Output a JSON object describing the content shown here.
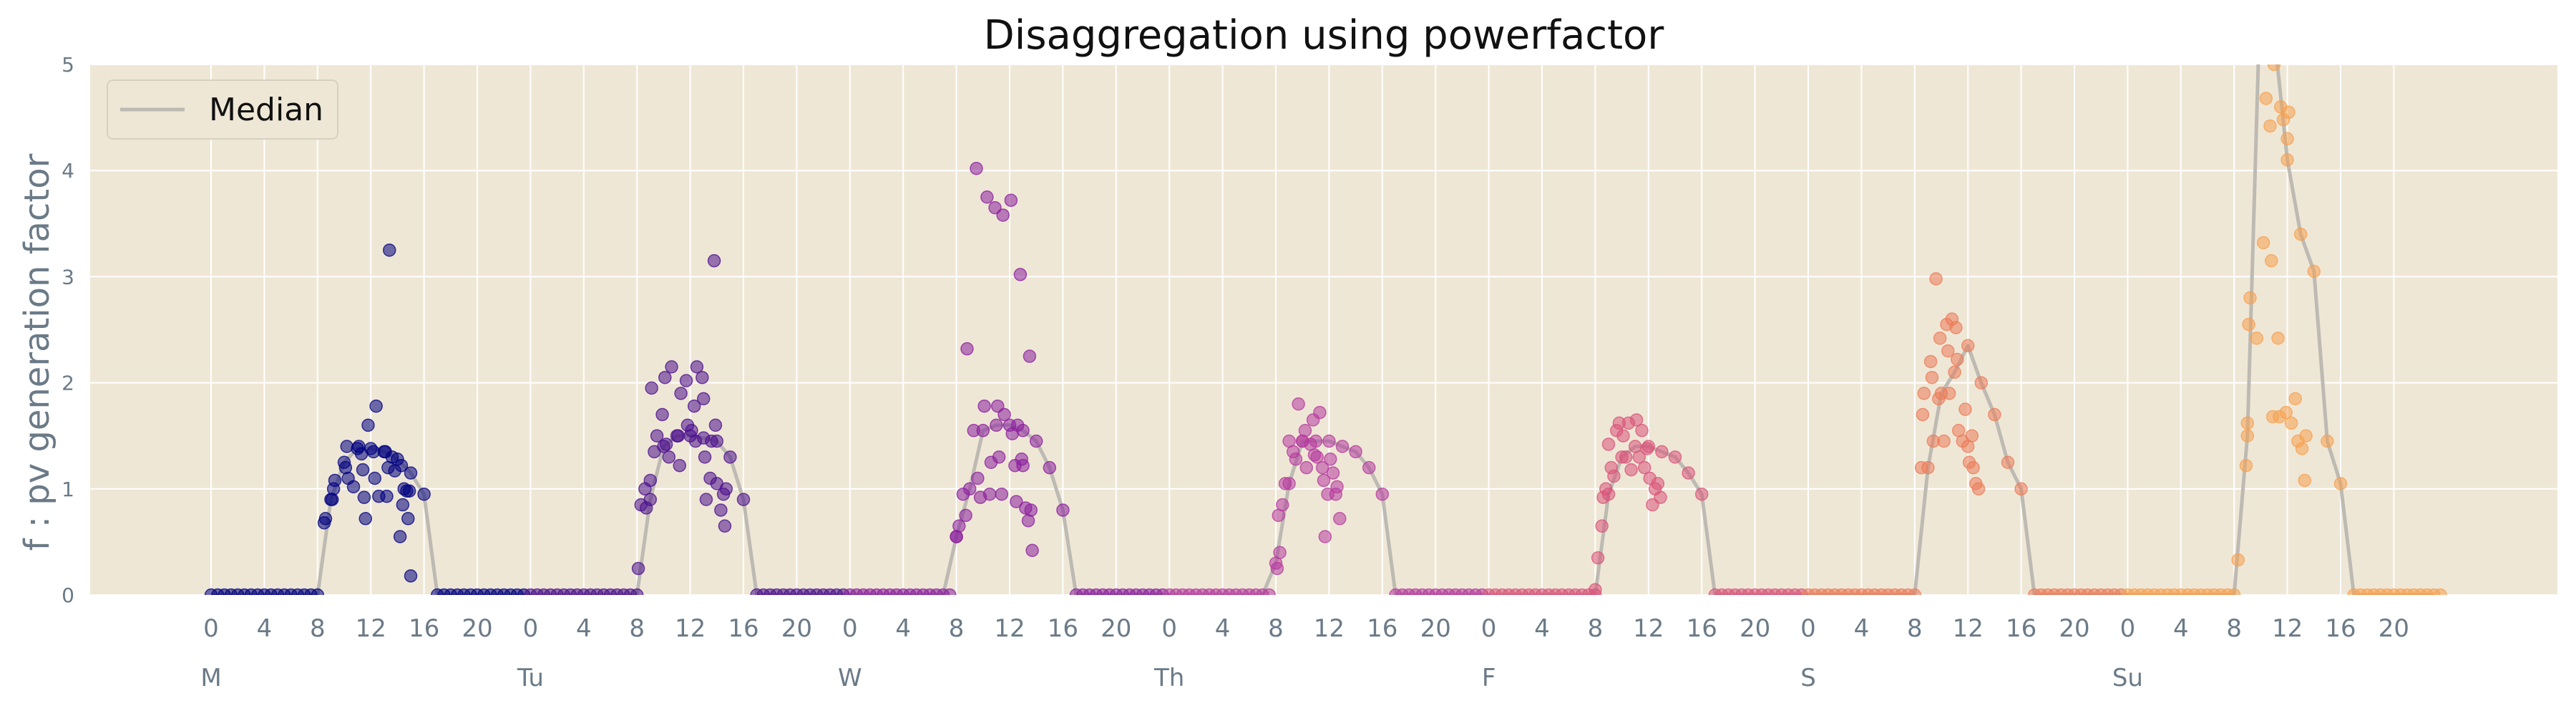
{
  "chart_data": {
    "type": "scatter",
    "title": "Disaggregation using powerfactor",
    "ylabel": "f : pv generation factor",
    "xlabel": "",
    "ylim": [
      0,
      5
    ],
    "yticks": [
      0,
      1,
      2,
      3,
      4,
      5
    ],
    "hour_tick_labels": [
      "0",
      "4",
      "8",
      "12",
      "16",
      "20"
    ],
    "day_labels": [
      "M",
      "Tu",
      "W",
      "Th",
      "F",
      "S",
      "Su"
    ],
    "grid": true,
    "legend": {
      "position": "top-left",
      "entries": [
        "Median"
      ]
    },
    "colors": {
      "background": "#efe7d6",
      "grid": "#ffffff",
      "median_line": "#bdbab3",
      "axis_text": "#6b7a87",
      "day_colors": [
        "#000080",
        "#4b0f8c",
        "#8b1f9e",
        "#b53a9e",
        "#d8547a",
        "#eb7b5a",
        "#f5a050"
      ]
    },
    "median_label": "Median",
    "days": [
      {
        "day": "M",
        "median": [
          0,
          0,
          0,
          0,
          0,
          0,
          0,
          0,
          0,
          0.9,
          1.25,
          1.38,
          1.38,
          1.35,
          1.28,
          1.15,
          0.95,
          0,
          0,
          0,
          0,
          0,
          0,
          0
        ],
        "extras": [
          [
            8.5,
            0.68
          ],
          [
            8.6,
            0.72
          ],
          [
            9.1,
            0.9
          ],
          [
            9.2,
            1.0
          ],
          [
            9.3,
            1.08
          ],
          [
            10.1,
            1.2
          ],
          [
            10.3,
            1.1
          ],
          [
            10.2,
            1.4
          ],
          [
            10.7,
            1.02
          ],
          [
            11.1,
            1.4
          ],
          [
            11.3,
            1.33
          ],
          [
            11.4,
            1.18
          ],
          [
            11.6,
            0.72
          ],
          [
            11.8,
            1.6
          ],
          [
            11.5,
            0.92
          ],
          [
            12.2,
            1.35
          ],
          [
            12.4,
            1.78
          ],
          [
            12.3,
            1.1
          ],
          [
            12.6,
            0.93
          ],
          [
            13.1,
            1.35
          ],
          [
            13.3,
            1.2
          ],
          [
            13.4,
            3.25
          ],
          [
            13.2,
            0.93
          ],
          [
            13.6,
            1.3
          ],
          [
            13.8,
            1.17
          ],
          [
            14.2,
            0.55
          ],
          [
            14.4,
            0.85
          ],
          [
            14.3,
            1.22
          ],
          [
            14.7,
            0.98
          ],
          [
            14.8,
            0.72
          ],
          [
            15.0,
            0.18
          ],
          [
            14.9,
            0.98
          ],
          [
            14.5,
            1.0
          ]
        ]
      },
      {
        "day": "Tu",
        "median": [
          0,
          0,
          0,
          0,
          0,
          0,
          0,
          0,
          0,
          0.9,
          1.4,
          1.5,
          1.5,
          1.48,
          1.45,
          1.3,
          0.9,
          0,
          0,
          0,
          0,
          0,
          0,
          0
        ],
        "extras": [
          [
            8.1,
            0.25
          ],
          [
            8.3,
            0.85
          ],
          [
            8.6,
            1.0
          ],
          [
            8.7,
            0.82
          ],
          [
            9.0,
            1.08
          ],
          [
            9.1,
            1.95
          ],
          [
            9.3,
            1.35
          ],
          [
            9.5,
            1.5
          ],
          [
            9.9,
            1.7
          ],
          [
            10.1,
            2.05
          ],
          [
            10.2,
            1.42
          ],
          [
            10.6,
            2.15
          ],
          [
            10.4,
            1.3
          ],
          [
            11.1,
            1.5
          ],
          [
            11.3,
            1.9
          ],
          [
            11.2,
            1.22
          ],
          [
            11.7,
            2.02
          ],
          [
            11.8,
            1.6
          ],
          [
            12.1,
            1.55
          ],
          [
            12.3,
            1.78
          ],
          [
            12.5,
            2.15
          ],
          [
            12.4,
            1.45
          ],
          [
            12.9,
            2.05
          ],
          [
            13.0,
            1.85
          ],
          [
            13.1,
            1.3
          ],
          [
            13.2,
            0.9
          ],
          [
            13.5,
            1.1
          ],
          [
            13.6,
            1.45
          ],
          [
            13.9,
            1.6
          ],
          [
            13.8,
            3.15
          ],
          [
            14.0,
            1.05
          ],
          [
            14.3,
            0.8
          ],
          [
            14.5,
            0.95
          ],
          [
            14.6,
            0.65
          ],
          [
            14.7,
            1.0
          ]
        ]
      },
      {
        "day": "W",
        "median": [
          0,
          0,
          0,
          0,
          0,
          0,
          0,
          0,
          0.55,
          1.0,
          1.55,
          1.6,
          1.6,
          1.55,
          1.45,
          1.2,
          0.8,
          0,
          0,
          0,
          0,
          0,
          0,
          0
        ],
        "extras": [
          [
            8.0,
            0.55
          ],
          [
            8.2,
            0.65
          ],
          [
            8.5,
            0.95
          ],
          [
            8.7,
            0.75
          ],
          [
            8.8,
            2.32
          ],
          [
            9.3,
            1.55
          ],
          [
            9.5,
            4.02
          ],
          [
            9.6,
            1.1
          ],
          [
            9.8,
            0.92
          ],
          [
            10.1,
            1.78
          ],
          [
            10.3,
            3.75
          ],
          [
            10.6,
            1.25
          ],
          [
            10.5,
            0.95
          ],
          [
            10.9,
            3.65
          ],
          [
            11.1,
            1.78
          ],
          [
            11.2,
            1.3
          ],
          [
            11.5,
            3.58
          ],
          [
            11.6,
            1.7
          ],
          [
            11.4,
            0.95
          ],
          [
            12.1,
            3.72
          ],
          [
            12.2,
            1.52
          ],
          [
            12.4,
            1.22
          ],
          [
            12.5,
            0.88
          ],
          [
            12.8,
            3.02
          ],
          [
            12.6,
            1.6
          ],
          [
            13.0,
            1.22
          ],
          [
            13.2,
            0.82
          ],
          [
            13.5,
            2.25
          ],
          [
            13.6,
            0.8
          ],
          [
            13.7,
            0.42
          ],
          [
            13.4,
            0.7
          ],
          [
            12.9,
            1.28
          ]
        ]
      },
      {
        "day": "Th",
        "median": [
          0,
          0,
          0,
          0,
          0,
          0,
          0,
          0,
          0.3,
          1.05,
          1.45,
          1.45,
          1.45,
          1.4,
          1.35,
          1.2,
          0.95,
          0,
          0,
          0,
          0,
          0,
          0,
          0
        ],
        "extras": [
          [
            8.1,
            0.25
          ],
          [
            8.3,
            0.4
          ],
          [
            8.2,
            0.75
          ],
          [
            8.5,
            0.85
          ],
          [
            8.7,
            1.05
          ],
          [
            9.0,
            1.45
          ],
          [
            9.3,
            1.35
          ],
          [
            9.5,
            1.28
          ],
          [
            9.7,
            1.8
          ],
          [
            10.0,
            1.45
          ],
          [
            10.2,
            1.55
          ],
          [
            10.3,
            1.2
          ],
          [
            10.6,
            1.42
          ],
          [
            10.8,
            1.65
          ],
          [
            10.9,
            1.32
          ],
          [
            11.1,
            1.3
          ],
          [
            11.3,
            1.72
          ],
          [
            11.5,
            1.2
          ],
          [
            11.6,
            1.08
          ],
          [
            11.7,
            0.55
          ],
          [
            11.9,
            0.95
          ],
          [
            12.1,
            1.28
          ],
          [
            12.3,
            1.15
          ],
          [
            12.6,
            1.02
          ],
          [
            12.8,
            0.72
          ],
          [
            12.5,
            0.95
          ]
        ]
      },
      {
        "day": "F",
        "median": [
          0,
          0,
          0,
          0,
          0,
          0,
          0,
          0,
          0.0,
          0.95,
          1.3,
          1.4,
          1.4,
          1.35,
          1.3,
          1.15,
          0.95,
          0,
          0,
          0,
          0,
          0,
          0,
          0
        ],
        "extras": [
          [
            8.0,
            0.05
          ],
          [
            8.2,
            0.35
          ],
          [
            8.5,
            0.65
          ],
          [
            8.6,
            0.92
          ],
          [
            8.8,
            1.0
          ],
          [
            9.0,
            1.42
          ],
          [
            9.2,
            1.2
          ],
          [
            9.4,
            1.12
          ],
          [
            9.6,
            1.55
          ],
          [
            9.8,
            1.62
          ],
          [
            10.1,
            1.5
          ],
          [
            10.3,
            1.3
          ],
          [
            10.5,
            1.62
          ],
          [
            10.7,
            1.18
          ],
          [
            11.1,
            1.65
          ],
          [
            11.3,
            1.3
          ],
          [
            11.5,
            1.55
          ],
          [
            11.7,
            1.2
          ],
          [
            11.9,
            1.38
          ],
          [
            12.1,
            1.1
          ],
          [
            12.3,
            0.85
          ],
          [
            12.5,
            1.0
          ],
          [
            12.7,
            1.05
          ],
          [
            12.9,
            0.92
          ]
        ]
      },
      {
        "day": "S",
        "median": [
          0,
          0,
          0,
          0,
          0,
          0,
          0,
          0,
          0.0,
          1.2,
          1.9,
          2.1,
          2.35,
          2.0,
          1.7,
          1.25,
          1.0,
          0,
          0,
          0,
          0,
          0,
          0,
          0
        ],
        "extras": [
          [
            8.5,
            1.2
          ],
          [
            8.6,
            1.7
          ],
          [
            8.7,
            1.9
          ],
          [
            9.2,
            2.2
          ],
          [
            9.3,
            2.05
          ],
          [
            9.4,
            1.45
          ],
          [
            9.6,
            2.98
          ],
          [
            9.8,
            1.85
          ],
          [
            9.9,
            2.42
          ],
          [
            10.2,
            1.45
          ],
          [
            10.4,
            2.55
          ],
          [
            10.5,
            2.3
          ],
          [
            10.6,
            1.9
          ],
          [
            10.8,
            2.6
          ],
          [
            11.1,
            2.52
          ],
          [
            11.3,
            1.55
          ],
          [
            11.2,
            2.22
          ],
          [
            11.6,
            1.45
          ],
          [
            11.8,
            1.75
          ],
          [
            12.1,
            1.25
          ],
          [
            12.3,
            1.5
          ],
          [
            12.4,
            1.2
          ],
          [
            12.6,
            1.05
          ],
          [
            12.8,
            1.0
          ],
          [
            12.0,
            1.4
          ]
        ]
      },
      {
        "day": "Su",
        "median": [
          0,
          0,
          0,
          0,
          0,
          0,
          0,
          0,
          0.0,
          1.5,
          5.8,
          5.3,
          4.1,
          3.4,
          3.05,
          1.45,
          1.05,
          0,
          0,
          0,
          0,
          0,
          0,
          0
        ],
        "extras": [
          [
            8.3,
            0.33
          ],
          [
            8.9,
            1.22
          ],
          [
            9.0,
            1.62
          ],
          [
            9.1,
            2.55
          ],
          [
            9.2,
            2.8
          ],
          [
            9.7,
            2.42
          ],
          [
            10.2,
            3.32
          ],
          [
            10.4,
            4.68
          ],
          [
            10.7,
            4.42
          ],
          [
            10.8,
            3.15
          ],
          [
            10.9,
            1.68
          ],
          [
            11.0,
            5.0
          ],
          [
            11.3,
            2.42
          ],
          [
            11.4,
            1.68
          ],
          [
            11.5,
            4.6
          ],
          [
            11.7,
            4.48
          ],
          [
            11.9,
            1.72
          ],
          [
            12.0,
            4.3
          ],
          [
            12.1,
            4.55
          ],
          [
            12.3,
            1.62
          ],
          [
            12.6,
            1.85
          ],
          [
            12.8,
            1.45
          ],
          [
            13.1,
            1.38
          ],
          [
            13.4,
            1.5
          ],
          [
            13.3,
            1.08
          ]
        ]
      }
    ]
  }
}
